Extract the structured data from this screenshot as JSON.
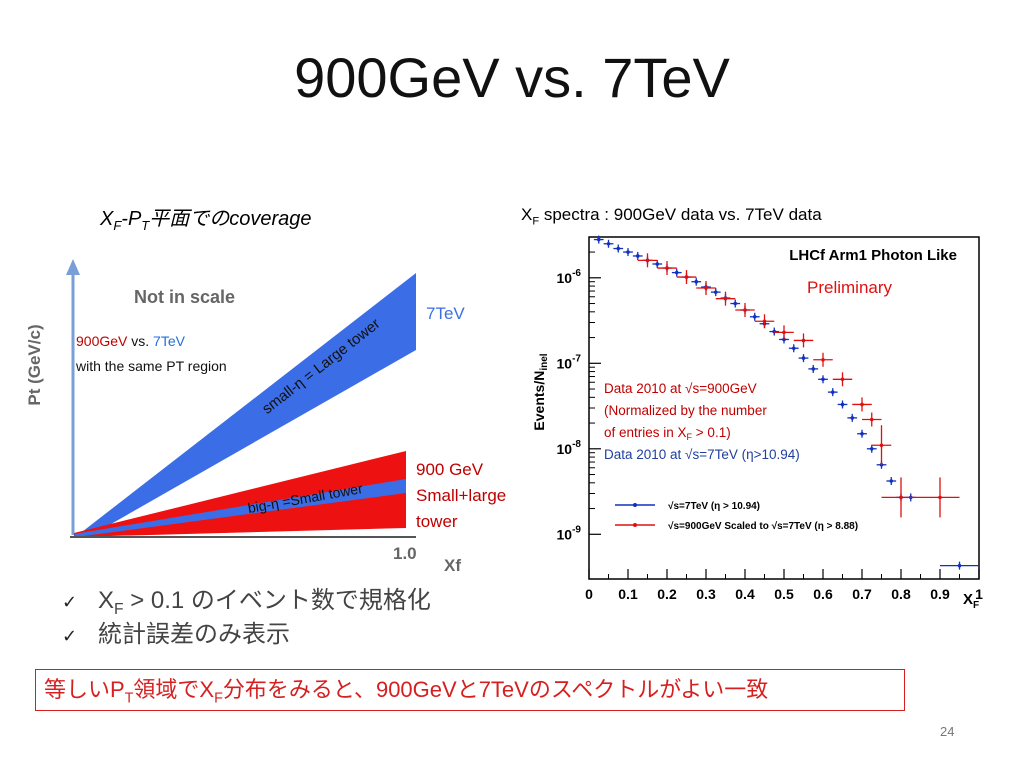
{
  "title": "900GeV vs. 7TeV",
  "left_figure": {
    "caption_x": "X",
    "caption_x_sub": "F",
    "caption_dash": "-P",
    "caption_p_sub": "T",
    "caption_tail": "平面でのcoverage",
    "y_axis_label": "Pt (GeV/c)",
    "not_in_scale": "Not in scale",
    "label_7tev": "7TeV",
    "band_small_eta": "small-η = Large tower",
    "band_big_eta": "big-η =Small tower",
    "note_900": "900GeV",
    "note_vs": " vs. ",
    "note_7": "7TeV",
    "note_line2": "with the same PT region",
    "label_900_line1": "900 GeV",
    "label_900_line2": "Small+large",
    "label_900_line3": "tower",
    "x_tick": "1.0",
    "x_label": "Xf",
    "colors": {
      "blue": "#3b6ee6",
      "red": "#ee1111",
      "note_red": "#c00000",
      "note_blue": "#1f6fe0"
    }
  },
  "right_figure": {
    "caption_x": "X",
    "caption_x_sub": "F",
    "caption_tail": " spectra : 900GeV data vs. 7TeV data",
    "plot_title": "LHCf Arm1 Photon Like",
    "preliminary": "Preliminary",
    "y_label": "Events/N",
    "y_label_sub": "inel",
    "x_label": "X",
    "x_label_sub": "F",
    "annotation_red_1": "Data 2010 at √s=900GeV",
    "annotation_red_2": "(Normalized by the number",
    "annotation_red_3_a": " of entries in X",
    "annotation_red_3_sub": "F",
    "annotation_red_3_b": " > 0.1)",
    "annotation_blue": "Data 2010 at √s=7TeV (η>10.94)",
    "legend_blue": "√s=7TeV (η > 10.94)",
    "legend_red": "√s=900GeV Scaled to √s=7TeV (η > 8.88)",
    "y_ticks": [
      {
        "base": "10",
        "exp": "-6"
      },
      {
        "base": "10",
        "exp": "-7"
      },
      {
        "base": "10",
        "exp": "-8"
      },
      {
        "base": "10",
        "exp": "-9"
      }
    ],
    "x_ticks": [
      "0",
      "0.1",
      "0.2",
      "0.3",
      "0.4",
      "0.5",
      "0.6",
      "0.7",
      "0.8",
      "0.9",
      "1"
    ],
    "colors": {
      "red": "#e01010",
      "blue": "#1030c0",
      "annot_red": "#c00000",
      "annot_blue": "#1f3f9f"
    }
  },
  "chart_data": {
    "type": "scatter",
    "title": "LHCf Arm1 Photon Like",
    "xlabel": "XF",
    "ylabel": "Events/Ninel",
    "xlim": [
      0,
      1
    ],
    "ylim": [
      3e-10,
      3e-06
    ],
    "yscale": "log",
    "legend_position": "bottom-left",
    "series": [
      {
        "name": "√s=7TeV (η > 10.94)",
        "color": "#1030c0",
        "x": [
          0.025,
          0.05,
          0.075,
          0.1,
          0.125,
          0.15,
          0.175,
          0.2,
          0.225,
          0.25,
          0.275,
          0.3,
          0.325,
          0.35,
          0.375,
          0.4,
          0.425,
          0.45,
          0.475,
          0.5,
          0.525,
          0.55,
          0.575,
          0.6,
          0.625,
          0.65,
          0.675,
          0.7,
          0.725,
          0.75,
          0.775,
          0.8,
          0.825,
          0.95
        ],
        "y": [
          2.8e-06,
          2.5e-06,
          2.2e-06,
          2e-06,
          1.8e-06,
          1.6e-06,
          1.45e-06,
          1.3e-06,
          1.15e-06,
          1.02e-06,
          9e-07,
          7.8e-07,
          6.8e-07,
          5.8e-07,
          5e-07,
          4.2e-07,
          3.5e-07,
          2.9e-07,
          2.35e-07,
          1.9e-07,
          1.5e-07,
          1.15e-07,
          8.6e-08,
          6.5e-08,
          4.6e-08,
          3.3e-08,
          2.3e-08,
          1.5e-08,
          1e-08,
          6.5e-09,
          4.2e-09,
          2.7e-09,
          2.7e-09,
          4.3e-10
        ],
        "xerr": [
          0.0125,
          0.0125,
          0.0125,
          0.0125,
          0.0125,
          0.0125,
          0.0125,
          0.0125,
          0.0125,
          0.0125,
          0.0125,
          0.0125,
          0.0125,
          0.0125,
          0.0125,
          0.0125,
          0.0125,
          0.0125,
          0.0125,
          0.0125,
          0.0125,
          0.0125,
          0.0125,
          0.0125,
          0.0125,
          0.0125,
          0.0125,
          0.0125,
          0.0125,
          0.0125,
          0.0125,
          0.0125,
          0.0125,
          0.05
        ]
      },
      {
        "name": "√s=900GeV Scaled to √s=7TeV (η > 8.88)",
        "color": "#e01010",
        "x": [
          0.15,
          0.2,
          0.25,
          0.3,
          0.35,
          0.4,
          0.45,
          0.5,
          0.55,
          0.6,
          0.65,
          0.7,
          0.725,
          0.75,
          0.8,
          0.9
        ],
        "y": [
          1.6e-06,
          1.3e-06,
          1.02e-06,
          7.6e-07,
          5.7e-07,
          4.2e-07,
          3.1e-07,
          2.3e-07,
          1.85e-07,
          1.1e-07,
          6.5e-08,
          3.3e-08,
          2.2e-08,
          1.1e-08,
          2.7e-09,
          2.7e-09
        ],
        "xerr": [
          0.025,
          0.025,
          0.025,
          0.025,
          0.025,
          0.025,
          0.025,
          0.025,
          0.025,
          0.025,
          0.025,
          0.025,
          0.025,
          0.025,
          0.05,
          0.05
        ]
      }
    ]
  },
  "checklist": {
    "item1_x": "X",
    "item1_sub": "F",
    "item1_tail": " > 0.1 のイベント数で規格化",
    "item2": "統計誤差のみ表示",
    "mark": "✓"
  },
  "conclusion": {
    "part1": "等しいP",
    "sub1": "T",
    "part2": "領域でX",
    "sub2": "F",
    "part3": "分布をみると、900GeVと7TeVのスペクトルがよい一致"
  },
  "page_number": "24"
}
